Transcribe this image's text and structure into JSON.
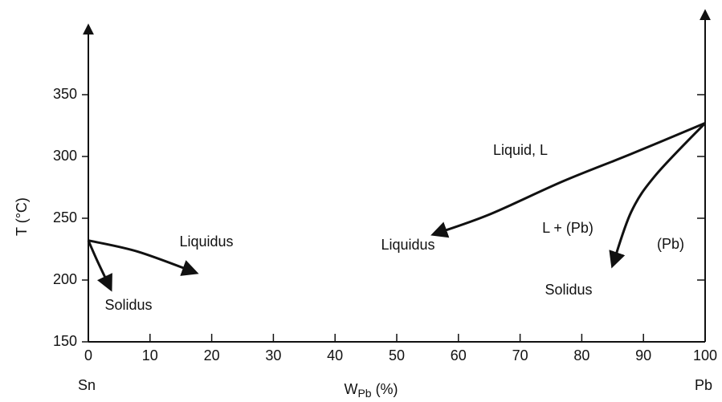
{
  "chart_data": {
    "type": "line",
    "xlim": [
      0,
      100
    ],
    "ylim": [
      150,
      400
    ],
    "xticks": [
      0,
      10,
      20,
      30,
      40,
      50,
      60,
      70,
      80,
      90,
      100
    ],
    "yticks": [
      150,
      200,
      250,
      300,
      350
    ],
    "y_label": "T (°C)",
    "x_label": {
      "main": "W",
      "sub": "Pb",
      "unit": "(%)"
    },
    "x_end_labels": [
      "Sn",
      "Pb"
    ],
    "color": "#111111",
    "series": [
      {
        "name": "Liquidus",
        "x": [
          100,
          88,
          77,
          65,
          56
        ],
        "values": [
          327,
          302,
          280,
          253,
          237
        ]
      },
      {
        "name": "Solidus",
        "x": [
          100,
          92,
          88,
          85
        ],
        "values": [
          327,
          285,
          255,
          212
        ]
      },
      {
        "name": "Liquidus",
        "x": [
          0,
          8,
          17.4
        ],
        "values": [
          232,
          223,
          206
        ]
      },
      {
        "name": "Solidus",
        "x": [
          0,
          1.5,
          3.6
        ],
        "values": [
          232,
          215,
          193
        ]
      }
    ],
    "annotations": [
      "Liquid, L",
      "L + (Pb)",
      "(Pb)"
    ]
  }
}
